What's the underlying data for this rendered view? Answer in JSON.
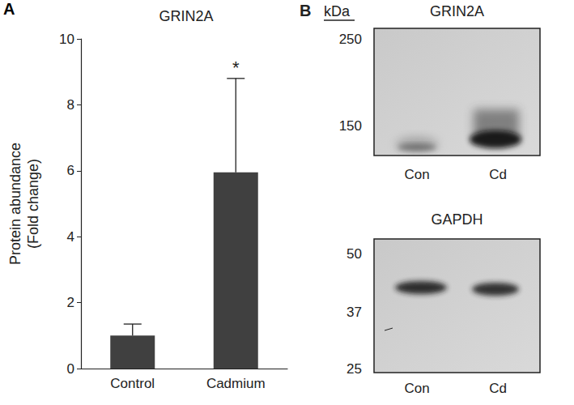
{
  "chart_data": {
    "type": "bar",
    "panel": "A",
    "title": "GRIN2A",
    "y_label": "Protein abundance\n(Fold change)",
    "categories": [
      "Control",
      "Cadmium"
    ],
    "values": [
      1.0,
      5.95
    ],
    "errors": [
      0.35,
      2.85
    ],
    "color": "#404040",
    "ylim": [
      0,
      10
    ],
    "yticks": [
      0,
      2,
      4,
      6,
      8,
      10
    ],
    "grid": false,
    "annotations": [
      {
        "category": "Cadmium",
        "text": "*"
      }
    ]
  },
  "blot_panel": {
    "panel": "B",
    "unit_label": "kDa",
    "blots": [
      {
        "title": "GRIN2A",
        "markers": [
          250,
          150
        ],
        "lanes": [
          "Con",
          "Cd"
        ]
      },
      {
        "title": "GAPDH",
        "markers": [
          50,
          37,
          25
        ],
        "lanes": [
          "Con",
          "Cd"
        ]
      }
    ]
  }
}
